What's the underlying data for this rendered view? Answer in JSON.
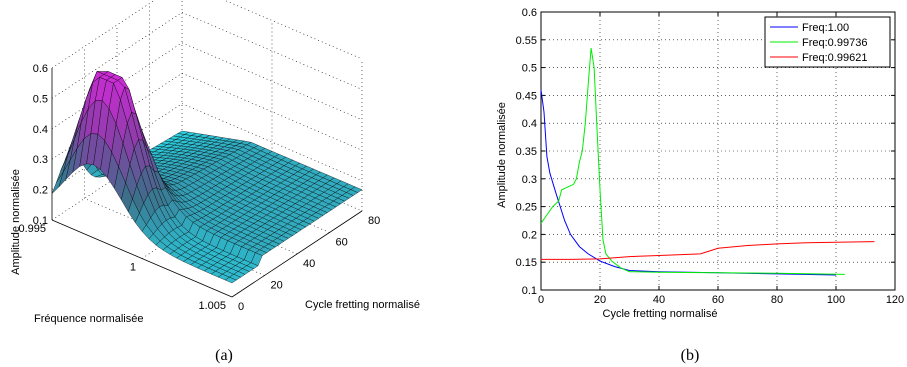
{
  "chart_data": [
    {
      "id": "a",
      "type": "surface3d",
      "caption": "(a)",
      "zlabel": "Amplitude normalisée",
      "xlabel": "Fréquence normalisée",
      "ylabel": "Cycle fretting normalisé",
      "z_ticks": [
        "0.1",
        "0.2",
        "0.3",
        "0.4",
        "0.5",
        "0.6"
      ],
      "x_ticks": [
        "0.995",
        "1",
        "1.005"
      ],
      "y_ticks": [
        "0",
        "20",
        "40",
        "60",
        "80"
      ],
      "zlim": [
        0.1,
        0.6
      ],
      "xlim": [
        0.995,
        1.005
      ],
      "ylim": [
        0,
        80
      ],
      "colormap": [
        "#2ad6e6",
        "#3c6f8a",
        "#8b3da8",
        "#cf2bd8"
      ]
    },
    {
      "id": "b",
      "type": "line",
      "caption": "(b)",
      "xlabel": "Cycle fretting normalisé",
      "ylabel": "Amplitude normalisée",
      "xlim": [
        0,
        120
      ],
      "ylim": [
        0.1,
        0.6
      ],
      "x_ticks": [
        "0",
        "20",
        "40",
        "60",
        "80",
        "100",
        "120"
      ],
      "y_ticks": [
        "0.1",
        "0.15",
        "0.2",
        "0.25",
        "0.3",
        "0.35",
        "0.4",
        "0.45",
        "0.5",
        "0.55",
        "0.6"
      ],
      "grid": true,
      "legend_position": "top-right",
      "series": [
        {
          "name": "Freq:1.00",
          "color": "#0000ff",
          "points": [
            [
              0,
              0.46
            ],
            [
              1,
              0.42
            ],
            [
              2,
              0.34
            ],
            [
              3,
              0.31
            ],
            [
              5,
              0.275
            ],
            [
              8,
              0.225
            ],
            [
              10,
              0.2
            ],
            [
              13,
              0.178
            ],
            [
              16,
              0.165
            ],
            [
              20,
              0.152
            ],
            [
              25,
              0.142
            ],
            [
              30,
              0.135
            ],
            [
              40,
              0.133
            ],
            [
              60,
              0.131
            ],
            [
              80,
              0.129
            ],
            [
              100,
              0.127
            ]
          ]
        },
        {
          "name": "Freq:0.99736",
          "color": "#00ee00",
          "points": [
            [
              0,
              0.22
            ],
            [
              2,
              0.235
            ],
            [
              4,
              0.25
            ],
            [
              6,
              0.26
            ],
            [
              7,
              0.28
            ],
            [
              9,
              0.285
            ],
            [
              11,
              0.29
            ],
            [
              12,
              0.3
            ],
            [
              13,
              0.33
            ],
            [
              14,
              0.35
            ],
            [
              15,
              0.4
            ],
            [
              16,
              0.47
            ],
            [
              17,
              0.535
            ],
            [
              18,
              0.5
            ],
            [
              19,
              0.39
            ],
            [
              20,
              0.28
            ],
            [
              21,
              0.19
            ],
            [
              22,
              0.165
            ],
            [
              24,
              0.152
            ],
            [
              27,
              0.14
            ],
            [
              30,
              0.133
            ],
            [
              40,
              0.132
            ],
            [
              60,
              0.131
            ],
            [
              80,
              0.13
            ],
            [
              103,
              0.128
            ]
          ]
        },
        {
          "name": "Freq:0.99621",
          "color": "#ff0000",
          "points": [
            [
              0,
              0.155
            ],
            [
              10,
              0.155
            ],
            [
              20,
              0.156
            ],
            [
              30,
              0.16
            ],
            [
              40,
              0.162
            ],
            [
              54,
              0.165
            ],
            [
              57,
              0.17
            ],
            [
              60,
              0.175
            ],
            [
              70,
              0.18
            ],
            [
              80,
              0.183
            ],
            [
              90,
              0.185
            ],
            [
              100,
              0.186
            ],
            [
              113,
              0.187
            ]
          ]
        }
      ]
    }
  ]
}
